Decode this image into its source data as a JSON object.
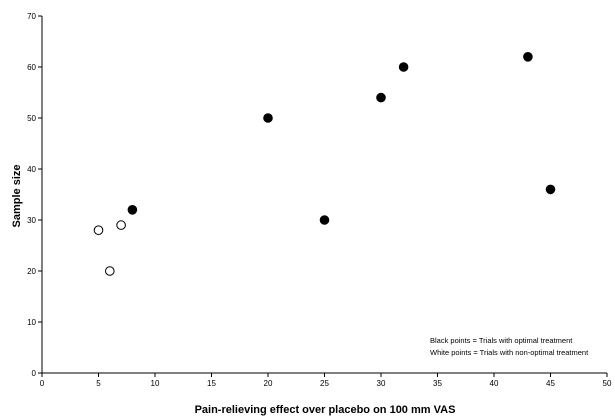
{
  "chart_data": {
    "type": "scatter",
    "title": "",
    "xlabel": "Pain-relieving effect over placebo on 100 mm VAS",
    "ylabel": "Sample size",
    "xlim": [
      0,
      50
    ],
    "ylim": [
      0,
      70
    ],
    "x_ticks": [
      "0",
      "5",
      "10",
      "15",
      "20",
      "25",
      "30",
      "35",
      "40",
      "45",
      "50"
    ],
    "y_ticks": [
      "0",
      "10",
      "20",
      "30",
      "40",
      "50",
      "60",
      "70"
    ],
    "grid": false,
    "series": [
      {
        "marker": "filled",
        "color": "#000000",
        "points": [
          {
            "x": 8,
            "y": 32
          },
          {
            "x": 20,
            "y": 50
          },
          {
            "x": 25,
            "y": 30
          },
          {
            "x": 30,
            "y": 54
          },
          {
            "x": 32,
            "y": 60
          },
          {
            "x": 43,
            "y": 62
          },
          {
            "x": 45,
            "y": 36
          }
        ]
      },
      {
        "marker": "open",
        "color": "#ffffff",
        "points": [
          {
            "x": 5,
            "y": 28
          },
          {
            "x": 6,
            "y": 20
          },
          {
            "x": 7,
            "y": 29
          }
        ]
      }
    ],
    "annotations": [
      "Black points = Trials with optimal treatment",
      "White points = Trials with non-optimal treatment"
    ]
  }
}
